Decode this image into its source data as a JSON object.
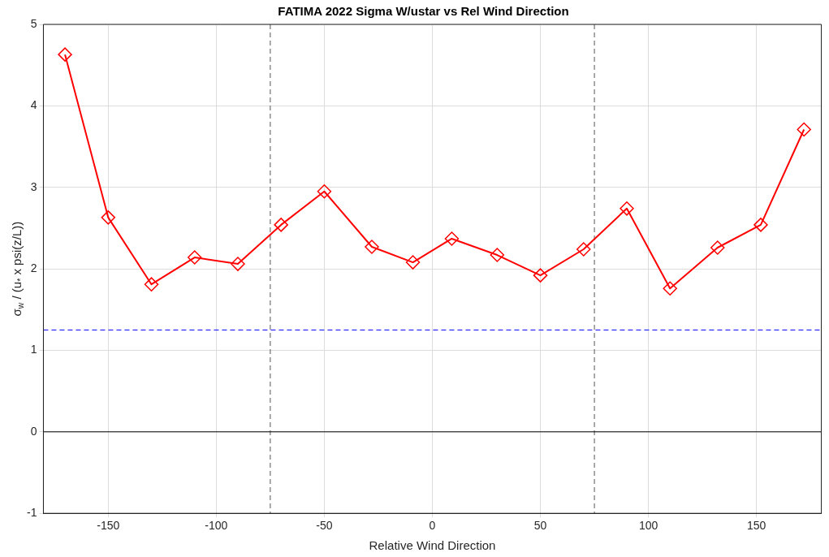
{
  "chart_data": {
    "type": "line",
    "title": "FATIMA 2022 Sigma W/ustar vs Rel Wind Direction",
    "xlabel": "Relative Wind Direction",
    "ylabel": "σ$_{w}$ / (u$_{*}$ x psi(z/L))",
    "x": [
      -170,
      -150,
      -130,
      -110,
      -90,
      -70,
      -50,
      -28,
      -9,
      9,
      30,
      50,
      70,
      90,
      110,
      132,
      152,
      172
    ],
    "series": [
      {
        "color": "#ff0000",
        "values": [
          4.63,
          2.63,
          1.81,
          2.14,
          2.06,
          2.54,
          2.95,
          2.27,
          2.08,
          2.37,
          2.17,
          1.92,
          2.24,
          2.74,
          1.76,
          2.26,
          2.54,
          3.71
        ]
      }
    ],
    "xlim": [
      -180,
      180
    ],
    "xticks": [
      -150,
      -100,
      -50,
      0,
      50,
      100,
      150
    ],
    "ylim": [
      -1,
      5
    ],
    "yticks": [
      -1,
      0,
      1,
      2,
      3,
      4,
      5
    ],
    "ref_lines": [
      {
        "axis": "x",
        "value": -75,
        "color": "#555555",
        "line_style": "dashed"
      },
      {
        "axis": "x",
        "value": 75,
        "color": "#555555",
        "line_style": "dashed"
      },
      {
        "axis": "y",
        "value": 1.25,
        "color": "#0000ff",
        "line_style": "dashed"
      },
      {
        "axis": "y",
        "value": 0,
        "color": "#000000",
        "line_style": "solid"
      }
    ],
    "grid": true,
    "legend": false,
    "marker": "diamond",
    "line_style": "solid"
  }
}
